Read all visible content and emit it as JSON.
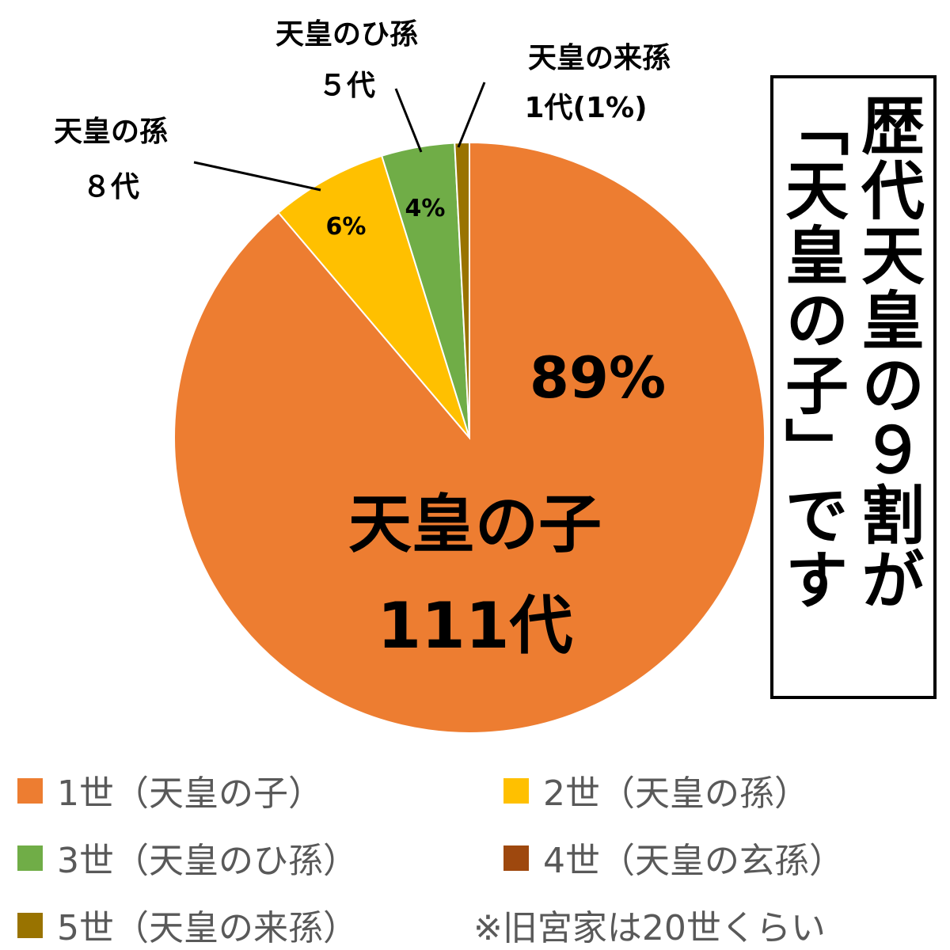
{
  "chart_data": {
    "type": "pie",
    "title": [
      "歴代天皇の９割が",
      "「天皇の子」です"
    ],
    "slices": [
      {
        "name": "1世（天皇の子）",
        "value": 111,
        "color": "#ED7D31",
        "pct_label": "89%",
        "label_lines": [
          "天皇の子",
          "111代"
        ]
      },
      {
        "name": "2世（天皇の孫）",
        "value": 8,
        "color": "#FFC000",
        "pct_label": "6%",
        "label_lines": [
          "天皇の孫",
          "８代"
        ]
      },
      {
        "name": "3世（天皇のひ孫）",
        "value": 5,
        "color": "#70AD47",
        "pct_label": "4%",
        "label_lines": [
          "天皇のひ孫",
          "５代"
        ]
      },
      {
        "name": "4世（天皇の玄孫）",
        "value": 0,
        "color": "#9E480E",
        "pct_label": "",
        "label_lines": []
      },
      {
        "name": "5世（天皇の来孫）",
        "value": 1,
        "color": "#997300",
        "pct_label": "",
        "label_lines": [
          "天皇の来孫",
          "1代(1%)"
        ]
      }
    ],
    "legend": {
      "placement": "bottom",
      "note": "※旧宮家は20世くらい"
    }
  }
}
